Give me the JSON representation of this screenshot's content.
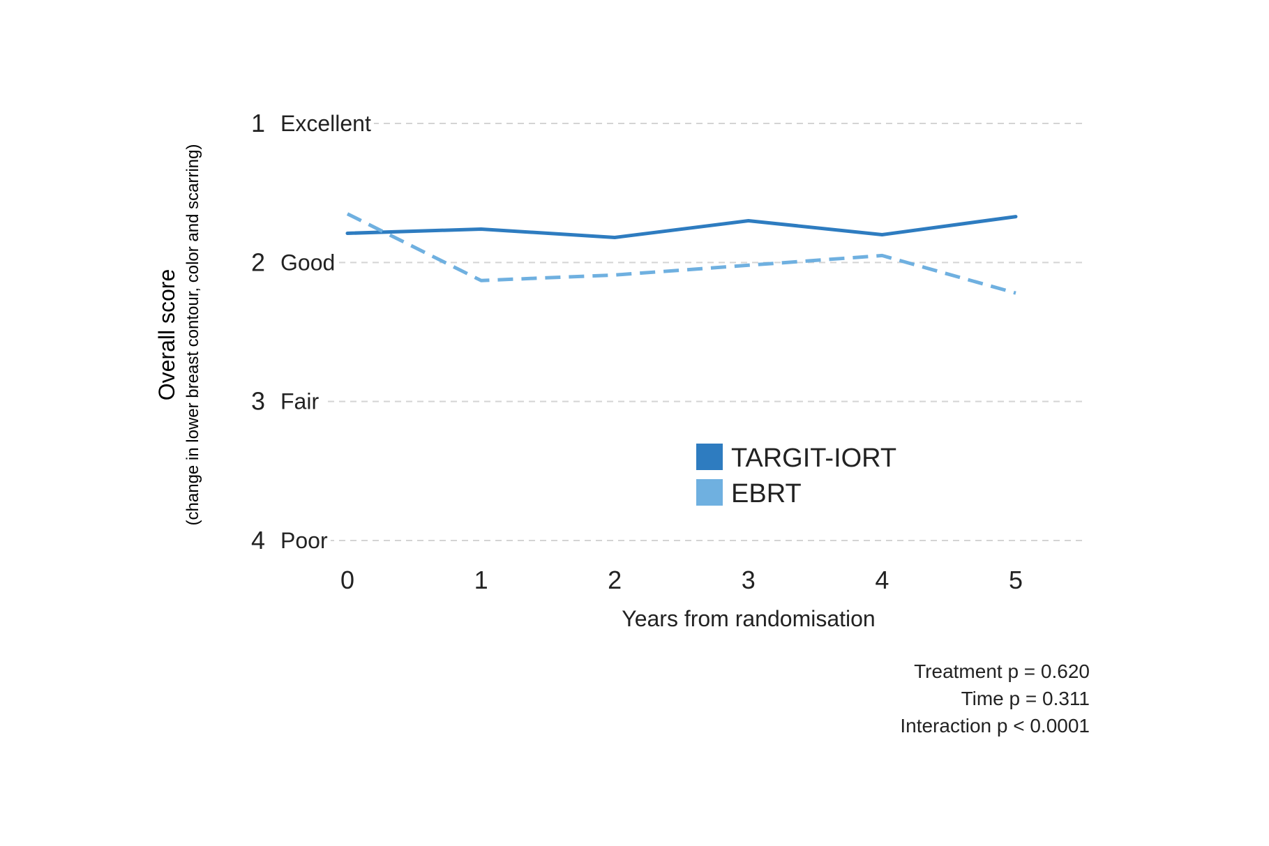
{
  "chart_data": {
    "type": "line",
    "x": [
      0,
      1,
      2,
      3,
      4,
      5
    ],
    "xlabel": "Years from randomisation",
    "ylabel": "Overall score",
    "ylabel_sub": "(change in lower breast contour, color and scarring)",
    "ylim": [
      1,
      4
    ],
    "y_inverted": true,
    "y_ticks": [
      {
        "value": 1,
        "number": "1",
        "label": "Excellent"
      },
      {
        "value": 2,
        "number": "2",
        "label": "Good"
      },
      {
        "value": 3,
        "number": "3",
        "label": "Fair"
      },
      {
        "value": 4,
        "number": "4",
        "label": "Poor"
      }
    ],
    "grid": "horizontal dashed",
    "legend_position": "center",
    "series": [
      {
        "name": "TARGIT-IORT",
        "color": "#2e7cc0",
        "style": "solid",
        "values": [
          1.79,
          1.76,
          1.82,
          1.7,
          1.8,
          1.67
        ]
      },
      {
        "name": "EBRT",
        "color": "#6fb0e0",
        "style": "dashed",
        "values": [
          1.65,
          2.13,
          2.09,
          2.02,
          1.95,
          2.22
        ]
      }
    ],
    "annotations": [
      "Treatment p = 0.620",
      "Time p = 0.311",
      "Interaction p < 0.0001"
    ]
  }
}
